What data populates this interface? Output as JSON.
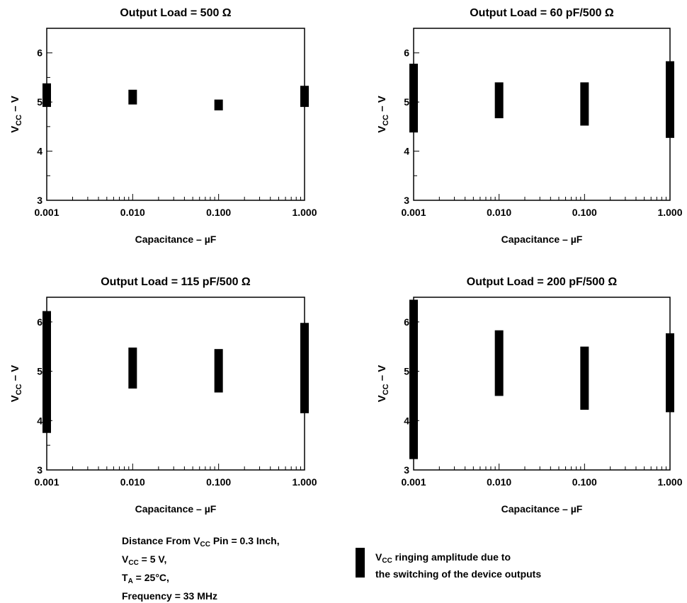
{
  "chart_data": [
    {
      "type": "range",
      "title": "Output Load = 500 Ω",
      "xlabel": "Capacitance – µF",
      "ylabel": "VCC – V",
      "xscale": "log",
      "xlim": [
        0.001,
        1.0
      ],
      "ylim": [
        3,
        6.5
      ],
      "xticklabels": [
        "0.001",
        "0.010",
        "0.100",
        "1.000"
      ],
      "yticklabels": [
        "3",
        "4",
        "5",
        "6"
      ],
      "grid": false,
      "series": [
        {
          "x": 0.001,
          "min": 4.9,
          "max": 5.38
        },
        {
          "x": 0.01,
          "min": 4.95,
          "max": 5.25
        },
        {
          "x": 0.1,
          "min": 4.83,
          "max": 5.05
        },
        {
          "x": 1.0,
          "min": 4.9,
          "max": 5.33
        }
      ]
    },
    {
      "type": "range",
      "title": "Output Load = 60 pF/500 Ω",
      "xlabel": "Capacitance – µF",
      "ylabel": "VCC – V",
      "xscale": "log",
      "xlim": [
        0.001,
        1.0
      ],
      "ylim": [
        3,
        6.5
      ],
      "xticklabels": [
        "0.001",
        "0.010",
        "0.100",
        "1.000"
      ],
      "yticklabels": [
        "3",
        "4",
        "5",
        "6"
      ],
      "grid": false,
      "series": [
        {
          "x": 0.001,
          "min": 4.38,
          "max": 5.78
        },
        {
          "x": 0.01,
          "min": 4.67,
          "max": 5.4
        },
        {
          "x": 0.1,
          "min": 4.52,
          "max": 5.4
        },
        {
          "x": 1.0,
          "min": 4.27,
          "max": 5.83
        }
      ]
    },
    {
      "type": "range",
      "title": "Output Load = 115 pF/500 Ω",
      "xlabel": "Capacitance – µF",
      "ylabel": "VCC – V",
      "xscale": "log",
      "xlim": [
        0.001,
        1.0
      ],
      "ylim": [
        3,
        6.5
      ],
      "xticklabels": [
        "0.001",
        "0.010",
        "0.100",
        "1.000"
      ],
      "yticklabels": [
        "3",
        "4",
        "5",
        "6"
      ],
      "grid": false,
      "series": [
        {
          "x": 0.001,
          "min": 3.75,
          "max": 6.22
        },
        {
          "x": 0.01,
          "min": 4.65,
          "max": 5.48
        },
        {
          "x": 0.1,
          "min": 4.57,
          "max": 5.45
        },
        {
          "x": 1.0,
          "min": 4.15,
          "max": 5.98
        }
      ]
    },
    {
      "type": "range",
      "title": "Output Load = 200 pF/500 Ω",
      "xlabel": "Capacitance – µF",
      "ylabel": "VCC – V",
      "xscale": "log",
      "xlim": [
        0.001,
        1.0
      ],
      "ylim": [
        3,
        6.5
      ],
      "xticklabels": [
        "0.001",
        "0.010",
        "0.100",
        "1.000"
      ],
      "yticklabels": [
        "3",
        "4",
        "5",
        "6"
      ],
      "grid": false,
      "series": [
        {
          "x": 0.001,
          "min": 3.22,
          "max": 6.45
        },
        {
          "x": 0.01,
          "min": 4.5,
          "max": 5.83
        },
        {
          "x": 0.1,
          "min": 4.22,
          "max": 5.5
        },
        {
          "x": 1.0,
          "min": 4.17,
          "max": 5.77
        }
      ]
    }
  ],
  "notes": {
    "line1_pre": "Distance From V",
    "line1_sub": "CC",
    "line1_post": " Pin = 0.3 Inch,",
    "line2_pre": "V",
    "line2_sub": "CC",
    "line2_post": " = 5 V,",
    "line3_pre": "T",
    "line3_sub": "A",
    "line3_post": " = 25°C,",
    "line4": "Frequency = 33 MHz"
  },
  "legend": {
    "line1_pre": "V",
    "line1_sub": "CC",
    "line1_post": " ringing amplitude due to",
    "line2": "the switching of the device outputs"
  },
  "colors": {
    "marks": "#000000",
    "background": "#ffffff"
  }
}
